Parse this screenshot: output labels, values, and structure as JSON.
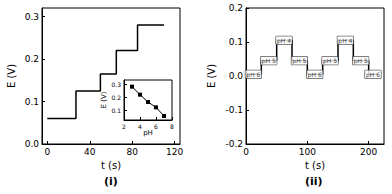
{
  "chart_data": [
    {
      "type": "line",
      "title": "(i)",
      "x_label": "t (s)",
      "y_label": "E (V)",
      "x": [
        0,
        27,
        50,
        65,
        85,
        110
      ],
      "values": [
        0.06,
        0.125,
        0.165,
        0.22,
        0.28,
        0.28
      ],
      "color": "#000000",
      "line_style": "step",
      "xlim": [
        -5,
        125
      ],
      "xticks": [
        0,
        40,
        80,
        120
      ],
      "ylim": [
        0,
        0.32
      ],
      "yticks": [
        {
          "value": 0,
          "label": "0.0"
        },
        0.1,
        0.2,
        0.3
      ],
      "grid": false
    },
    {
      "type": "line",
      "title": "(ii)",
      "x_label": "t (s)",
      "y_label": "E (V)",
      "x": [
        0,
        25,
        50,
        75,
        100,
        125,
        150,
        175,
        200,
        215
      ],
      "values": [
        0.005,
        0.045,
        0.105,
        0.045,
        0.005,
        0.045,
        0.105,
        0.045,
        0.005,
        0.005
      ],
      "color": "#000000",
      "line_style": "step",
      "xlim": [
        0,
        225
      ],
      "xticks": [
        0,
        100,
        200
      ],
      "ylim": [
        -0.2,
        0.2
      ],
      "yticks": [
        -0.2,
        -0.1,
        {
          "value": 0,
          "label": "0.0"
        },
        0.1,
        0.2
      ],
      "grid": false,
      "annotations": [
        {
          "text": "pH 6",
          "x": 12,
          "y": 0.005
        },
        {
          "text": "pH 5",
          "x": 37,
          "y": 0.045
        },
        {
          "text": "pH 4",
          "x": 62,
          "y": 0.105
        },
        {
          "text": "pH 5",
          "x": 87,
          "y": 0.045
        },
        {
          "text": "pH 6",
          "x": 112,
          "y": 0.005
        },
        {
          "text": "pH 5",
          "x": 137,
          "y": 0.045
        },
        {
          "text": "pH 4",
          "x": 162,
          "y": 0.105
        },
        {
          "text": "pH 5",
          "x": 187,
          "y": 0.045
        },
        {
          "text": "pH 6",
          "x": 207,
          "y": 0.005
        }
      ]
    },
    {
      "type": "line",
      "x_label": "pH",
      "y_label": "E (V)",
      "x": [
        3,
        4,
        5,
        6,
        7
      ],
      "values": [
        0.28,
        0.22,
        0.165,
        0.125,
        0.06
      ],
      "color": "#000000",
      "marker": "square",
      "xlim": [
        2,
        8
      ],
      "xticks": [
        2,
        4,
        6,
        8
      ],
      "ylim": [
        0.03,
        0.33
      ],
      "yticks": [
        0.1,
        0.2,
        0.3
      ],
      "grid": false
    }
  ]
}
